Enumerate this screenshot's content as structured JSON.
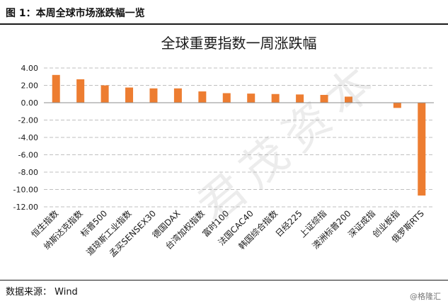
{
  "figure": {
    "label": "图 1：本周全球市场涨跌幅一览",
    "source": "数据来源：  Wind",
    "credit": "@格隆汇",
    "watermark": "君茂资本"
  },
  "colors": {
    "bar": "#ED7D31",
    "grid": "#BFBFBF",
    "text": "#1a1a1a"
  },
  "chart_data": {
    "type": "bar",
    "title": "全球重要指数一周涨跌幅",
    "xlabel": "",
    "ylabel": "",
    "ylim": [
      -12,
      4
    ],
    "yticks": [
      "4.00",
      "2.00",
      "0.00",
      "-2.00",
      "-4.00",
      "-6.00",
      "-8.00",
      "-10.00",
      "-12.00"
    ],
    "ytick_values": [
      4,
      2,
      0,
      -2,
      -4,
      -6,
      -8,
      -10,
      -12
    ],
    "grid": true,
    "legend": "none",
    "categories": [
      "恒生指数",
      "纳斯达克指数",
      "标普500",
      "道琼斯工业指数",
      "孟买SENSEX30",
      "德国DAX",
      "台湾加权指数",
      "富时100",
      "法国CAC40",
      "韩国综合指数",
      "日经225",
      "上证综指",
      "澳洲标普200",
      "深证成指",
      "创业板指",
      "俄罗斯RTS"
    ],
    "values": [
      3.2,
      2.7,
      2.0,
      1.75,
      1.65,
      1.65,
      1.3,
      1.1,
      1.05,
      1.0,
      0.95,
      0.9,
      0.7,
      0,
      -0.6,
      -10.7
    ]
  }
}
